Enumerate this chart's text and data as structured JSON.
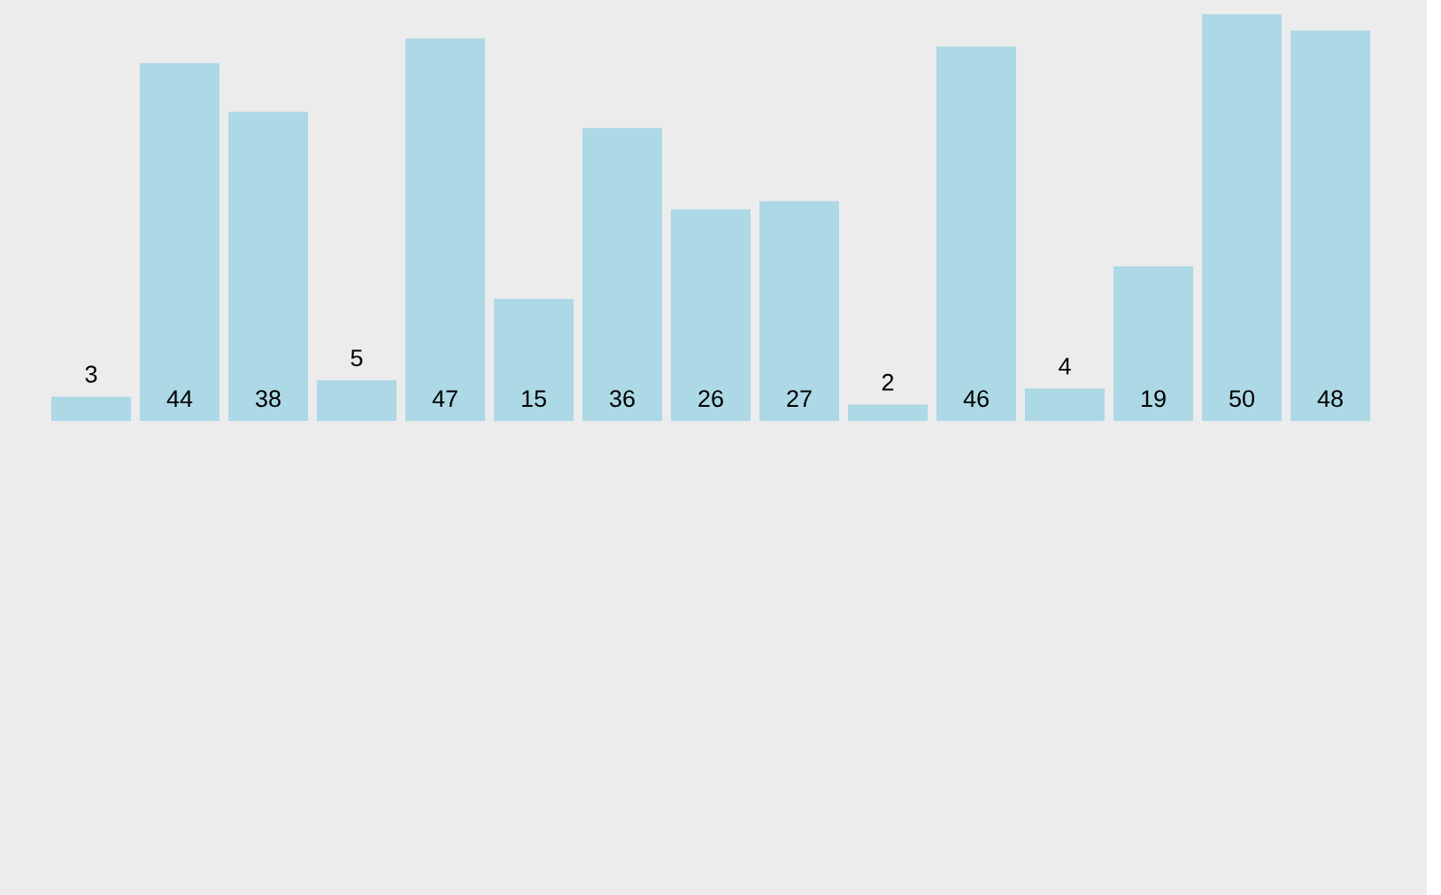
{
  "chart_data": {
    "type": "bar",
    "categories": [
      null,
      null,
      null,
      null,
      null,
      null,
      null,
      null,
      null,
      null,
      null,
      null,
      null,
      null,
      null
    ],
    "values": [
      3,
      44,
      38,
      5,
      47,
      15,
      36,
      26,
      27,
      2,
      46,
      4,
      19,
      50,
      48
    ],
    "color": "#add8e6",
    "data_labels": true
  }
}
